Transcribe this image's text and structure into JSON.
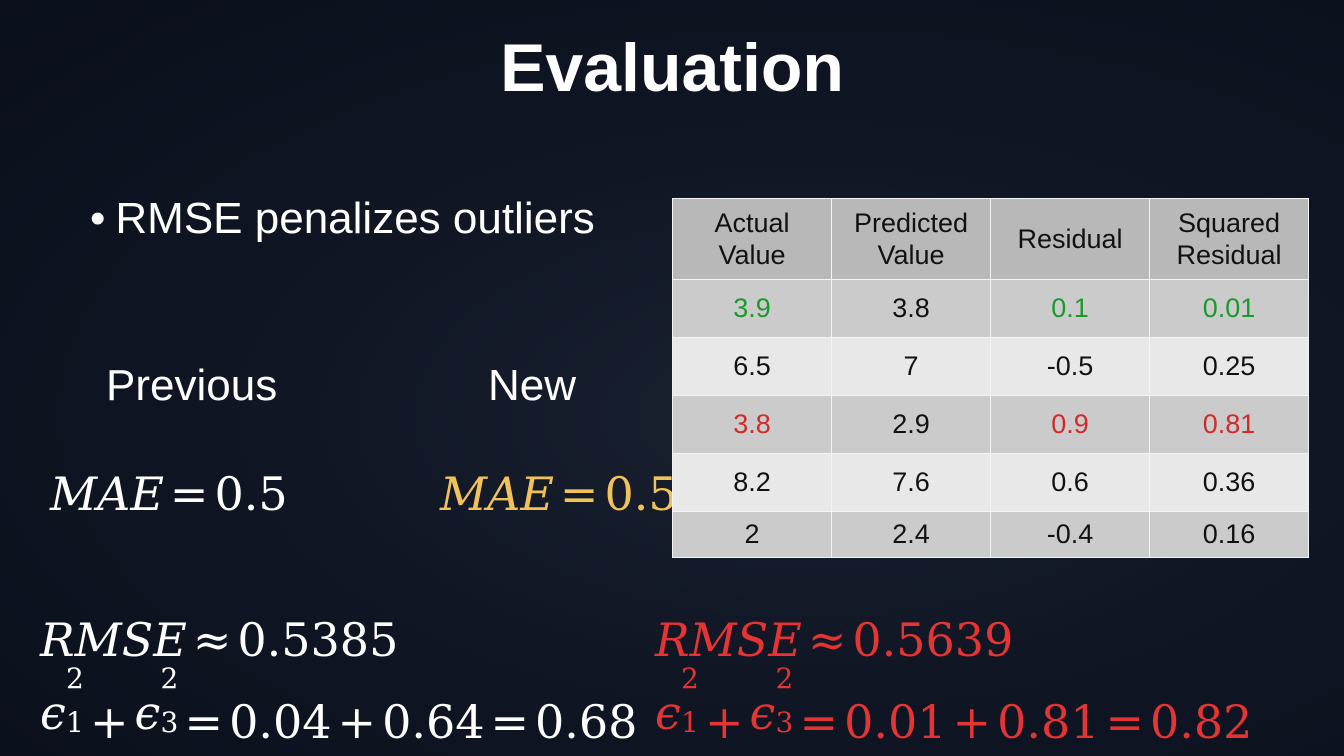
{
  "slide": {
    "title": "Evaluation",
    "bullet": "RMSE penalizes outliers"
  },
  "columns": {
    "previous": "Previous",
    "new": "New"
  },
  "metrics": {
    "mae_label": "MAE",
    "equals": "=",
    "approx": "≈",
    "plus": "+",
    "mae_prev_value": "0.5",
    "mae_new_value": "0.5",
    "rmse_label": "RMSE",
    "rmse_prev_value": "0.5385",
    "rmse_new_value": "0.5639",
    "epsilon": "ϵ",
    "exponent": "2",
    "sub_first": "1",
    "sub_third": "3",
    "sum_prev": [
      "0.04",
      "0.64",
      "0.68"
    ],
    "sum_new": [
      "0.01",
      "0.81",
      "0.82"
    ]
  },
  "colors": {
    "mae_new": "#f2c25a",
    "rmse_new": "#e43434",
    "green_highlight": "#1a9a2c",
    "red_highlight": "#d12a2a"
  },
  "table": {
    "headers": [
      [
        "Actual",
        "Value"
      ],
      [
        "Predicted",
        "Value"
      ],
      [
        "Residual"
      ],
      [
        "Squared",
        "Residual"
      ]
    ],
    "rows": [
      [
        "3.9",
        "3.8",
        "0.1",
        "0.01"
      ],
      [
        "6.5",
        "7",
        "-0.5",
        "0.25"
      ],
      [
        "3.8",
        "2.9",
        "0.9",
        "0.81"
      ],
      [
        "8.2",
        "7.6",
        "0.6",
        "0.36"
      ],
      [
        "2",
        "2.4",
        "-0.4",
        "0.16"
      ]
    ]
  }
}
